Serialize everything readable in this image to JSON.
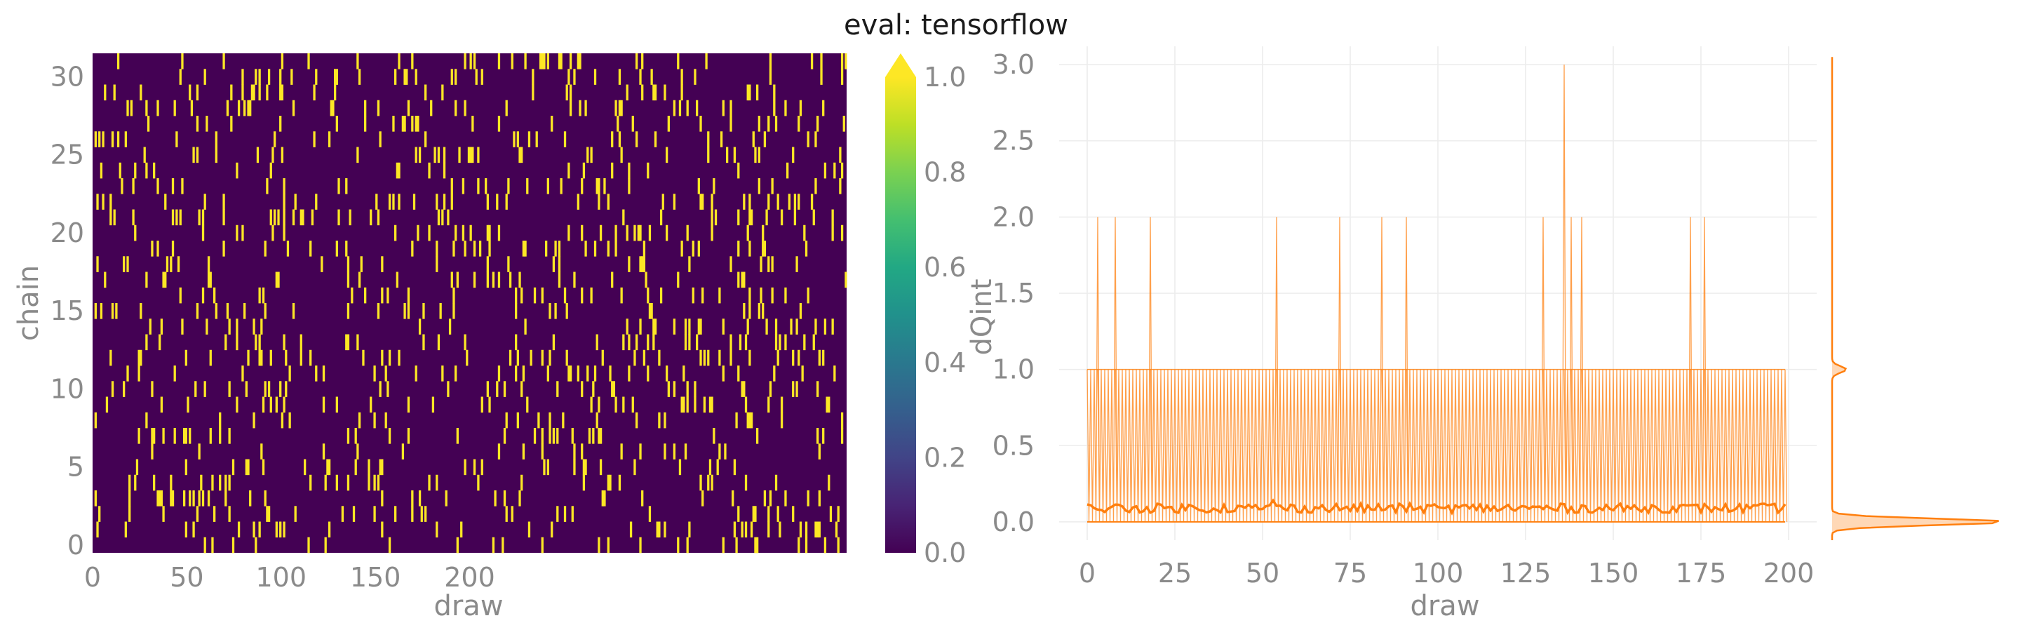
{
  "title": "eval: tensorflow",
  "chart_data": [
    {
      "type": "heatmap",
      "xlabel": "draw",
      "ylabel": "chain",
      "x_ticks": [
        0,
        50,
        100,
        150,
        200
      ],
      "y_ticks": [
        0,
        5,
        10,
        15,
        20,
        25,
        30
      ],
      "xlim": [
        0,
        400
      ],
      "ylim": [
        -0.5,
        31.5
      ],
      "n_chains": 32,
      "n_draws": 400,
      "colorbar": {
        "label": "dQint",
        "ticks": [
          "0.0",
          "0.2",
          "0.4",
          "0.6",
          "0.8",
          "1.0"
        ],
        "range": [
          0,
          1
        ],
        "extend": "max",
        "colormap": "viridis"
      },
      "value_fraction_ones": 0.07,
      "low_color": "#440154",
      "high_color": "#fde725"
    },
    {
      "type": "line",
      "xlabel": "draw",
      "ylabel": "",
      "x_ticks": [
        "0",
        "25",
        "50",
        "75",
        "100",
        "125",
        "150",
        "175",
        "200"
      ],
      "y_ticks": [
        "0.0",
        "0.5",
        "1.0",
        "1.5",
        "2.0",
        "2.5",
        "3.0"
      ],
      "xlim": [
        -8,
        208
      ],
      "ylim": [
        -0.12,
        3.12
      ],
      "grid": true,
      "color": "#ff7f0e",
      "series": [
        {
          "role": "per-chain traces",
          "x_range": [
            0,
            199
          ],
          "values_typical": [
            0,
            1
          ],
          "spikes": [
            {
              "x": 3,
              "y": 2
            },
            {
              "x": 8,
              "y": 2
            },
            {
              "x": 18,
              "y": 2
            },
            {
              "x": 54,
              "y": 2
            },
            {
              "x": 72,
              "y": 2
            },
            {
              "x": 84,
              "y": 2
            },
            {
              "x": 91,
              "y": 2
            },
            {
              "x": 130,
              "y": 2
            },
            {
              "x": 136,
              "y": 3
            },
            {
              "x": 138,
              "y": 2
            },
            {
              "x": 141,
              "y": 2
            },
            {
              "x": 172,
              "y": 2
            },
            {
              "x": 176,
              "y": 2
            }
          ]
        },
        {
          "role": "mean",
          "mean_level": 0.09
        }
      ],
      "marginal_density": {
        "peaks": [
          {
            "y": 0.0,
            "height": 1.0
          },
          {
            "y": 1.0,
            "height": 0.08
          }
        ]
      }
    }
  ]
}
